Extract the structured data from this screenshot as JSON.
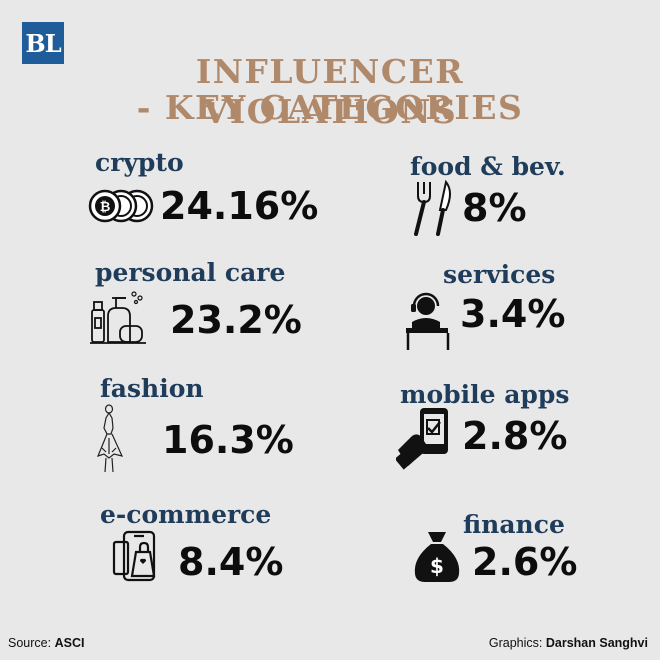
{
  "logo": "BL",
  "title_line1": "INFLUENCER VIOLATIONS",
  "title_line2": "- KEY CATEGORIES",
  "colors": {
    "title": "#b0886a",
    "category": "#1f3d5a",
    "percent": "#0d0d0d",
    "logo_bg": "#1f5c9a",
    "background": "#e8e8e8"
  },
  "chart_data": {
    "type": "table",
    "title": "INFLUENCER VIOLATIONS - KEY CATEGORIES",
    "categories": [
      "crypto",
      "personal care",
      "fashion",
      "e-commerce",
      "food & bev.",
      "services",
      "mobile apps",
      "finance"
    ],
    "values": [
      24.16,
      23.2,
      16.3,
      8.4,
      8,
      3.4,
      2.8,
      2.6
    ],
    "value_labels": [
      "24.16%",
      "23.2%",
      "16.3%",
      "8.4%",
      "8%",
      "3.4%",
      "2.8%",
      "2.6%"
    ],
    "icons": [
      "coins-icon",
      "personal-care-icon",
      "dress-icon",
      "shopping-phone-icon",
      "fork-knife-icon",
      "headset-desk-icon",
      "phone-hand-icon",
      "money-bag-icon"
    ]
  },
  "footer": {
    "source_label": "Source:",
    "source_value": "ASCI",
    "graphics_label": "Graphics:",
    "graphics_value": "Darshan Sanghvi"
  }
}
